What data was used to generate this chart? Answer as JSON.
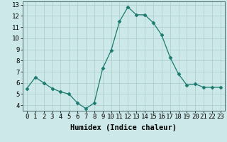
{
  "xlabel": "Humidex (Indice chaleur)",
  "x": [
    0,
    1,
    2,
    3,
    4,
    5,
    6,
    7,
    8,
    9,
    10,
    11,
    12,
    13,
    14,
    15,
    16,
    17,
    18,
    19,
    20,
    21,
    22,
    23
  ],
  "y": [
    5.5,
    6.5,
    6.0,
    5.5,
    5.2,
    5.0,
    4.2,
    3.7,
    4.2,
    7.3,
    8.9,
    11.5,
    12.8,
    12.1,
    12.1,
    11.4,
    10.3,
    8.3,
    6.8,
    5.8,
    5.9,
    5.6,
    5.6,
    5.6
  ],
  "line_color": "#1a7a6e",
  "marker": "D",
  "marker_size": 2.5,
  "bg_color": "#cce8e8",
  "grid_color": "#aacccc",
  "ylim": [
    3.5,
    13.3
  ],
  "yticks": [
    4,
    5,
    6,
    7,
    8,
    9,
    10,
    11,
    12,
    13
  ],
  "xticks": [
    0,
    1,
    2,
    3,
    4,
    5,
    6,
    7,
    8,
    9,
    10,
    11,
    12,
    13,
    14,
    15,
    16,
    17,
    18,
    19,
    20,
    21,
    22,
    23
  ],
  "xlabel_fontsize": 7.5,
  "tick_fontsize": 6.5
}
